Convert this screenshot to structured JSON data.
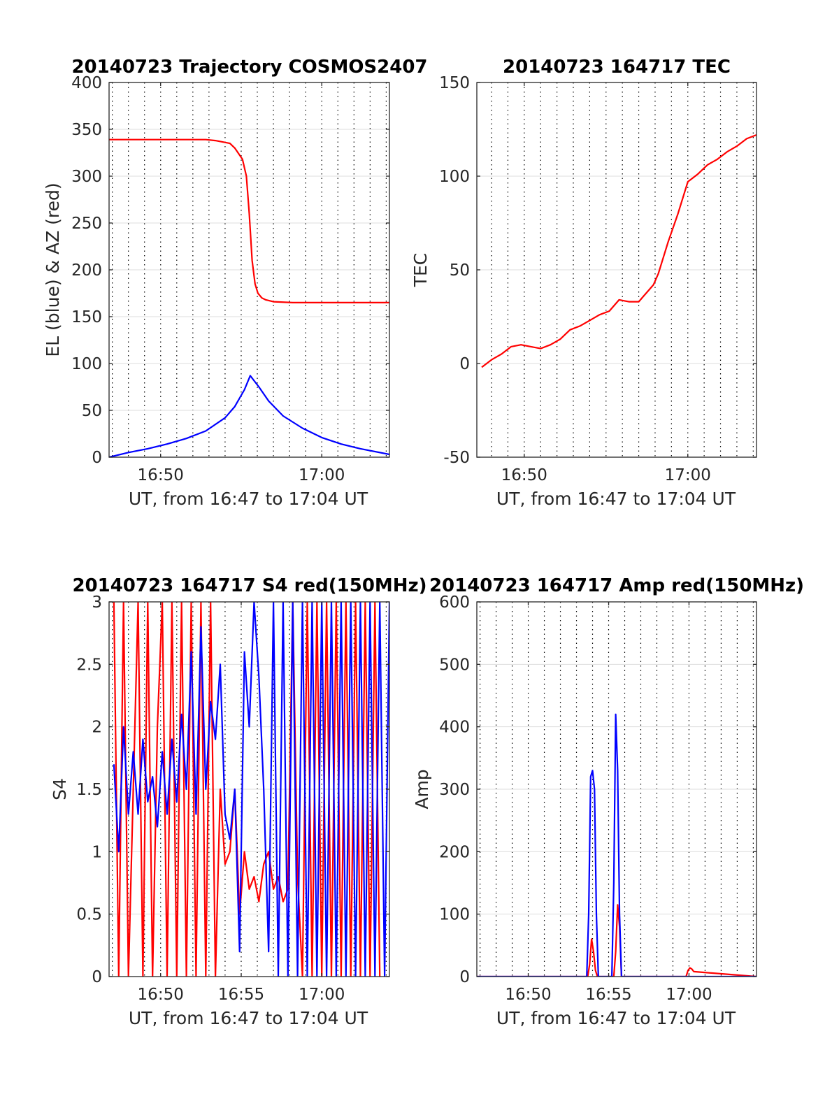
{
  "chart_data": [
    {
      "type": "line",
      "title": "20140723 Trajectory COSMOS2407",
      "xlabel": "UT, from 16:47 to 17:04 UT",
      "ylabel": "EL (blue) & AZ (red)",
      "xlim": [
        16.78,
        17.07
      ],
      "ylim": [
        0,
        400
      ],
      "xticks": [
        16.8333,
        17.0
      ],
      "xtick_labels": [
        "16:50",
        "17:00"
      ],
      "yticks": [
        0,
        50,
        100,
        150,
        200,
        250,
        300,
        350,
        400
      ],
      "ytick_labels": [
        "0",
        "50",
        "100",
        "150",
        "200",
        "250",
        "300",
        "350",
        "400"
      ],
      "grid": true,
      "series": [
        {
          "color": "#ff0000",
          "x": [
            16.78,
            16.85,
            16.88,
            16.89,
            16.905,
            16.91,
            16.918,
            16.922,
            16.925,
            16.928,
            16.931,
            16.934,
            16.938,
            16.942,
            16.95,
            16.97,
            17.07
          ],
          "y": [
            339,
            339,
            339,
            338,
            335,
            330,
            318,
            300,
            260,
            210,
            185,
            175,
            170,
            168,
            166,
            165,
            165
          ]
        },
        {
          "color": "#0000ff",
          "x": [
            16.78,
            16.8,
            16.82,
            16.84,
            16.86,
            16.88,
            16.9,
            16.91,
            16.92,
            16.926,
            16.935,
            16.945,
            16.96,
            16.98,
            17.0,
            17.02,
            17.04,
            17.07
          ],
          "y": [
            0,
            5,
            9,
            14,
            20,
            28,
            42,
            54,
            72,
            87,
            75,
            60,
            44,
            31,
            21,
            14,
            9,
            3
          ]
        }
      ]
    },
    {
      "type": "line",
      "title": "20140723 164717 TEC",
      "xlabel": "UT, from 16:47 to 17:04 UT",
      "ylabel": "TEC",
      "xlim": [
        16.785,
        17.07
      ],
      "ylim": [
        -50,
        150
      ],
      "xticks": [
        16.8333,
        17.0
      ],
      "xtick_labels": [
        "16:50",
        "17:00"
      ],
      "yticks": [
        -50,
        0,
        50,
        100,
        150
      ],
      "ytick_labels": [
        "-50",
        "0",
        "50",
        "100",
        "150"
      ],
      "grid": true,
      "series": [
        {
          "color": "#ff0000",
          "x": [
            16.79,
            16.8,
            16.81,
            16.82,
            16.83,
            16.84,
            16.85,
            16.86,
            16.87,
            16.88,
            16.89,
            16.9,
            16.91,
            16.92,
            16.93,
            16.94,
            16.95,
            16.955,
            16.96,
            16.965,
            16.97,
            16.98,
            16.99,
            17.0,
            17.01,
            17.02,
            17.03,
            17.04,
            17.05,
            17.06,
            17.07
          ],
          "y": [
            -2,
            2,
            5,
            9,
            10,
            9,
            8,
            10,
            13,
            18,
            20,
            23,
            26,
            28,
            34,
            33,
            33,
            36,
            39,
            42,
            48,
            65,
            80,
            97,
            101,
            106,
            109,
            113,
            116,
            120,
            122
          ]
        }
      ]
    },
    {
      "type": "line",
      "title": "20140723 164717 S4 red(150MHz)",
      "xlabel": "UT, from 16:47 to 17:04 UT",
      "ylabel": "S4",
      "xlim": [
        16.78,
        17.07
      ],
      "ylim": [
        0,
        3
      ],
      "xticks": [
        16.8333,
        16.9167,
        17.0
      ],
      "xtick_labels": [
        "16:50",
        "16:55",
        "17:00"
      ],
      "yticks": [
        0,
        0.5,
        1,
        1.5,
        2,
        2.5,
        3
      ],
      "ytick_labels": [
        "0",
        "0.5",
        "1",
        "1.5",
        "2",
        "2.5",
        "3"
      ],
      "grid": true,
      "series": [
        {
          "color": "#ff0000",
          "x": [
            16.785,
            16.79,
            16.795,
            16.8,
            16.805,
            16.81,
            16.815,
            16.82,
            16.825,
            16.83,
            16.835,
            16.84,
            16.845,
            16.85,
            16.855,
            16.86,
            16.865,
            16.87,
            16.875,
            16.88,
            16.885,
            16.89,
            16.895,
            16.9,
            16.905,
            16.91,
            16.915,
            16.92,
            16.925,
            16.93,
            16.935,
            16.94,
            16.945,
            16.95,
            16.955,
            16.96,
            16.965,
            16.97,
            16.975,
            16.98,
            16.985,
            16.99,
            16.995,
            17.0,
            17.005,
            17.01,
            17.015,
            17.02,
            17.025,
            17.03,
            17.035,
            17.04,
            17.045,
            17.05,
            17.055,
            17.06
          ],
          "y": [
            3,
            0,
            3,
            0,
            1.5,
            3,
            0,
            3,
            0,
            2,
            3,
            0,
            3,
            0,
            3,
            0,
            3,
            0,
            3,
            0,
            3,
            0,
            1.5,
            0.9,
            1.0,
            1.5,
            0.5,
            1.0,
            0.7,
            0.8,
            0.6,
            0.9,
            1.0,
            0.7,
            0.8,
            0.6,
            0.7,
            3,
            0.8,
            0,
            3,
            0,
            3,
            0,
            3,
            0,
            3,
            0,
            3,
            0,
            3,
            0,
            3,
            0,
            3,
            0
          ]
        },
        {
          "color": "#0000ff",
          "x": [
            16.785,
            16.79,
            16.795,
            16.8,
            16.805,
            16.81,
            16.815,
            16.82,
            16.825,
            16.83,
            16.835,
            16.84,
            16.845,
            16.85,
            16.855,
            16.86,
            16.865,
            16.87,
            16.875,
            16.88,
            16.885,
            16.89,
            16.895,
            16.9,
            16.905,
            16.91,
            16.915,
            16.92,
            16.925,
            16.93,
            16.935,
            16.94,
            16.945,
            16.95,
            16.955,
            16.96,
            16.965,
            16.97,
            16.975,
            16.98,
            16.985,
            16.99,
            16.995,
            17.0,
            17.005,
            17.01,
            17.015,
            17.02,
            17.025,
            17.03,
            17.035,
            17.04,
            17.045,
            17.05,
            17.055,
            17.06,
            17.065,
            17.07
          ],
          "y": [
            1.7,
            1.0,
            2.0,
            1.3,
            1.8,
            1.3,
            1.9,
            1.4,
            1.6,
            1.2,
            1.8,
            1.3,
            1.9,
            1.4,
            2.1,
            1.5,
            2.6,
            1.3,
            2.8,
            1.5,
            2.2,
            1.9,
            2.5,
            1.3,
            1.1,
            1.5,
            0.2,
            2.6,
            2.0,
            3,
            2.4,
            1.5,
            0.2,
            3,
            0,
            3,
            0,
            3,
            0,
            3,
            0,
            3,
            0,
            3,
            0,
            3,
            0,
            3,
            0,
            3,
            0,
            3,
            0,
            3,
            0,
            3,
            0,
            3
          ]
        }
      ]
    },
    {
      "type": "line",
      "title": "20140723 164717 Amp red(150MHz)",
      "xlabel": "UT, from 16:47 to 17:04 UT",
      "ylabel": "Amp",
      "xlim": [
        16.78,
        17.07
      ],
      "ylim": [
        0,
        600
      ],
      "xticks": [
        16.8333,
        16.9167,
        17.0
      ],
      "xtick_labels": [
        "16:50",
        "16:55",
        "17:00"
      ],
      "yticks": [
        0,
        100,
        200,
        300,
        400,
        500,
        600
      ],
      "ytick_labels": [
        "0",
        "100",
        "200",
        "300",
        "400",
        "500",
        "600"
      ],
      "grid": true,
      "series": [
        {
          "color": "#ff0000",
          "x": [
            16.78,
            16.895,
            16.897,
            16.899,
            16.901,
            16.903,
            16.905,
            16.922,
            16.924,
            16.926,
            16.928,
            16.93,
            16.997,
            16.999,
            17.001,
            17.003,
            17.005,
            17.07
          ],
          "y": [
            0,
            0,
            20,
            60,
            40,
            10,
            0,
            0,
            40,
            115,
            80,
            0,
            0,
            10,
            14,
            12,
            8,
            0
          ]
        },
        {
          "color": "#0000ff",
          "x": [
            16.78,
            16.894,
            16.896,
            16.898,
            16.9,
            16.902,
            16.904,
            16.906,
            16.92,
            16.922,
            16.924,
            16.926,
            16.928,
            16.93,
            17.07
          ],
          "y": [
            0,
            0,
            100,
            320,
            330,
            300,
            100,
            0,
            0,
            150,
            420,
            330,
            100,
            0,
            0
          ]
        }
      ]
    }
  ]
}
